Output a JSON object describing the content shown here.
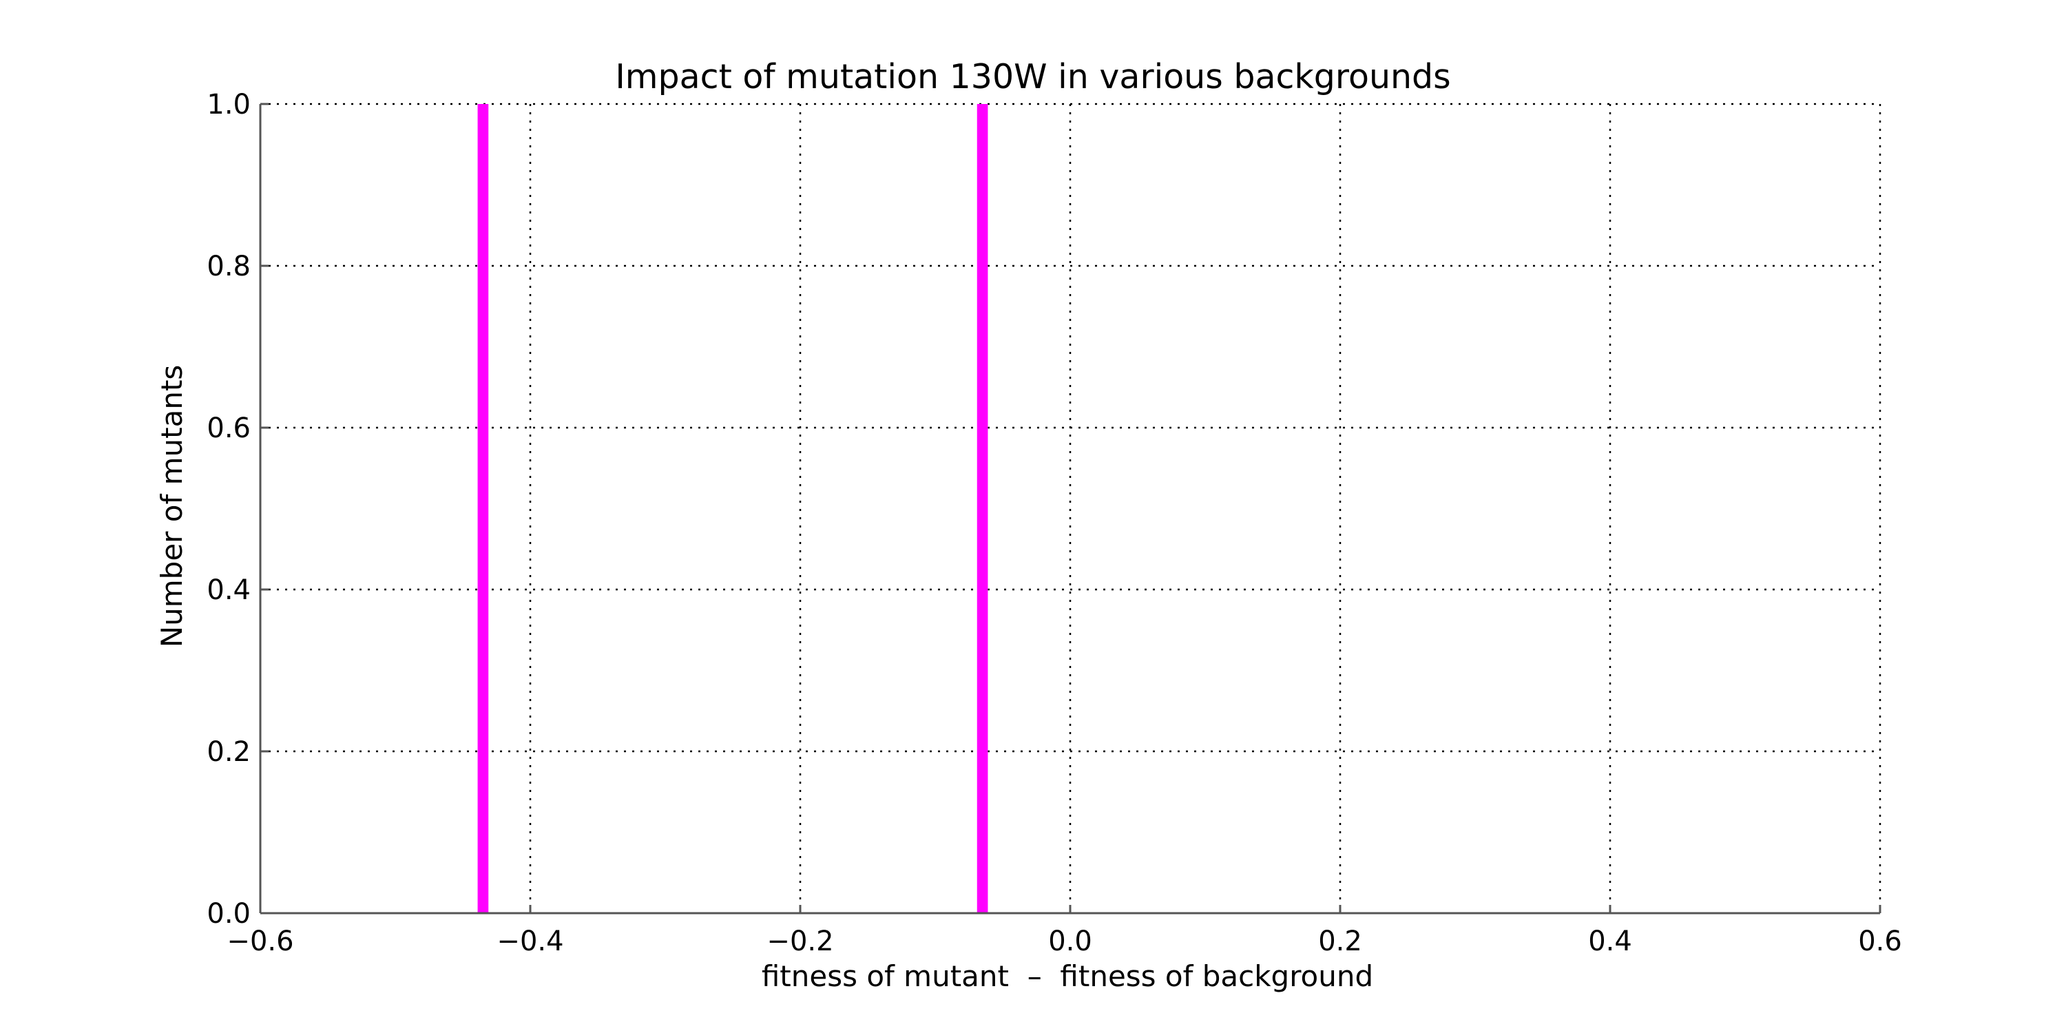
{
  "chart_data": {
    "type": "bar",
    "title": "Impact of mutation 130W in various backgrounds",
    "xlabel": "fitness of mutant  –  fitness of background",
    "ylabel": "Number of mutants",
    "xlim": [
      -0.6,
      0.6
    ],
    "ylim": [
      0.0,
      1.0
    ],
    "x_ticks": [
      -0.6,
      -0.4,
      -0.2,
      0.0,
      0.2,
      0.4,
      0.6
    ],
    "x_tick_labels": [
      "−0.6",
      "−0.4",
      "−0.2",
      "0.0",
      "0.2",
      "0.4",
      "0.6"
    ],
    "y_ticks": [
      0.0,
      0.2,
      0.4,
      0.6,
      0.8,
      1.0
    ],
    "y_tick_labels": [
      "0.0",
      "0.2",
      "0.4",
      "0.6",
      "0.8",
      "1.0"
    ],
    "grid": true,
    "bar_width": 0.008,
    "series": [
      {
        "color": "#ff00ff",
        "points": [
          {
            "x": -0.435,
            "y": 1.0
          },
          {
            "x": -0.065,
            "y": 1.0
          }
        ]
      }
    ]
  }
}
